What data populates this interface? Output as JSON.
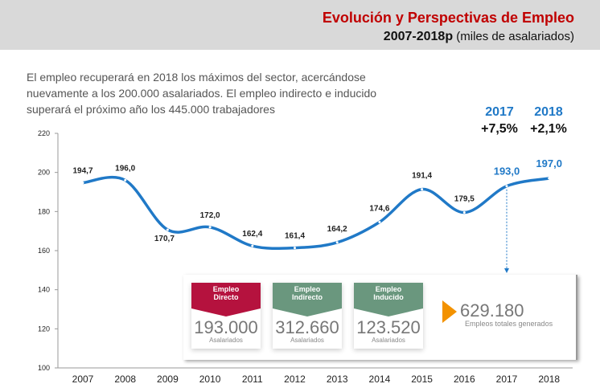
{
  "header": {
    "title": "Evolución y Perspectivas de Empleo",
    "period": "2007-2018p",
    "unit": "(miles de asalariados)"
  },
  "intro": "El empleo recuperará en 2018 los máximos del sector, acercándose nuevamente a los 200.000 asalariados. El empleo indirecto e inducido superará el próximo año los 445.000 trabajadores",
  "growth": [
    {
      "year": "2017",
      "pct": "+7,5%"
    },
    {
      "year": "2018",
      "pct": "+2,1%"
    }
  ],
  "colors": {
    "line": "#2079c7",
    "highlight": "#2079c7",
    "directo": "#b5123e",
    "indirecto": "#6a977e",
    "total_arrow": "#f39200"
  },
  "chart_data": {
    "type": "line",
    "categories": [
      "2007",
      "2008",
      "2009",
      "2010",
      "2011",
      "2012",
      "2013",
      "2014",
      "2015",
      "2016",
      "2017",
      "2018"
    ],
    "values": [
      194.7,
      196.0,
      170.7,
      172.0,
      162.4,
      161.4,
      164.2,
      174.6,
      191.4,
      179.5,
      193.0,
      197.0
    ],
    "labels": [
      "194,7",
      "196,0",
      "170,7",
      "172,0",
      "162,4",
      "161,4",
      "164,2",
      "174,6",
      "191,4",
      "179,5",
      "193,0",
      "197,0"
    ],
    "highlighted": [
      "2017",
      "2018"
    ],
    "ylim": [
      100,
      220
    ],
    "yticks": [
      "100",
      "120",
      "140",
      "160",
      "180",
      "200",
      "220"
    ],
    "grid": false
  },
  "summary": {
    "cards": [
      {
        "title1": "Empleo",
        "title2": "Directo",
        "value": "193.000",
        "sub": "Asalariados"
      },
      {
        "title1": "Empleo",
        "title2": "Indirecto",
        "value": "312.660",
        "sub": "Asalariados"
      },
      {
        "title1": "Empleo",
        "title2": "Inducido",
        "value": "123.520",
        "sub": "Asalariados"
      }
    ],
    "total": "629.180",
    "total_label": "Empleos totales generados"
  }
}
